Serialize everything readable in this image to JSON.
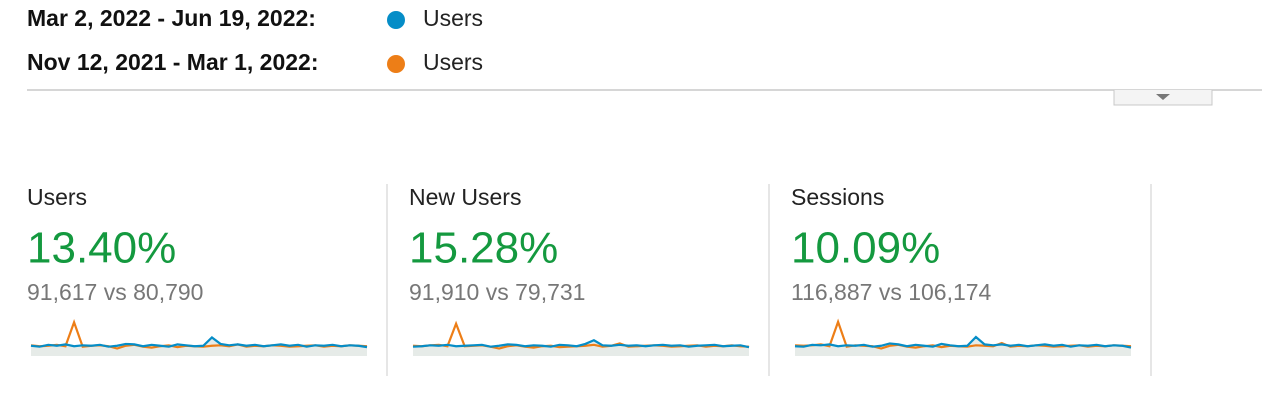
{
  "legend": [
    {
      "range": "Mar 2, 2022 - Jun 19, 2022:",
      "color": "#058dc7",
      "metric": "Users"
    },
    {
      "range": "Nov 12, 2021 - Mar 1, 2022:",
      "color": "#ed7e17",
      "metric": "Users"
    }
  ],
  "metrics": [
    {
      "title": "Users",
      "change": "13.40%",
      "comparison": "91,617 vs 80,790",
      "sparkline": [
        {
          "values": [
            44,
            42,
            46,
            44,
            47,
            43,
            45,
            44,
            46,
            42,
            44,
            48,
            47,
            43,
            46,
            44,
            42,
            47,
            45,
            43,
            44,
            62,
            48,
            45,
            47,
            44,
            46,
            43,
            45,
            47,
            44,
            46,
            42,
            45,
            44,
            46,
            43,
            45,
            44,
            41
          ]
        },
        {
          "values": [
            45,
            43,
            44,
            46,
            43,
            95,
            42,
            44,
            45,
            43,
            38,
            44,
            46,
            42,
            40,
            43,
            45,
            41,
            44,
            43,
            42,
            44,
            45,
            43,
            47,
            42,
            44,
            43,
            45,
            44,
            42,
            43,
            44,
            45,
            42,
            44,
            43,
            45,
            44,
            43
          ]
        }
      ]
    },
    {
      "title": "New Users",
      "change": "15.28%",
      "comparison": "91,910 vs 79,731",
      "sparkline": [
        {
          "values": [
            42,
            43,
            45,
            44,
            46,
            43,
            44,
            45,
            46,
            42,
            44,
            47,
            46,
            43,
            45,
            44,
            42,
            46,
            45,
            43,
            48,
            56,
            45,
            44,
            46,
            44,
            45,
            43,
            45,
            46,
            44,
            45,
            42,
            44,
            45,
            46,
            43,
            44,
            45,
            41
          ]
        },
        {
          "values": [
            44,
            43,
            45,
            46,
            43,
            92,
            43,
            44,
            45,
            42,
            38,
            43,
            45,
            42,
            40,
            43,
            44,
            41,
            42,
            43,
            44,
            46,
            42,
            44,
            49,
            42,
            43,
            44,
            45,
            44,
            42,
            43,
            44,
            45,
            42,
            44,
            43,
            45,
            43,
            42
          ]
        }
      ]
    },
    {
      "title": "Sessions",
      "change": "10.09%",
      "comparison": "116,887 vs 106,174",
      "sparkline": [
        {
          "values": [
            43,
            42,
            46,
            45,
            47,
            43,
            45,
            44,
            46,
            42,
            44,
            49,
            47,
            43,
            46,
            44,
            42,
            48,
            45,
            43,
            44,
            63,
            47,
            45,
            47,
            44,
            46,
            43,
            45,
            47,
            44,
            46,
            42,
            45,
            44,
            46,
            43,
            45,
            44,
            40
          ]
        },
        {
          "values": [
            45,
            44,
            45,
            47,
            43,
            96,
            42,
            45,
            44,
            43,
            38,
            44,
            46,
            42,
            40,
            43,
            45,
            41,
            44,
            43,
            42,
            45,
            44,
            43,
            50,
            42,
            44,
            43,
            45,
            44,
            42,
            43,
            44,
            45,
            42,
            44,
            43,
            45,
            44,
            43
          ]
        }
      ]
    }
  ]
}
